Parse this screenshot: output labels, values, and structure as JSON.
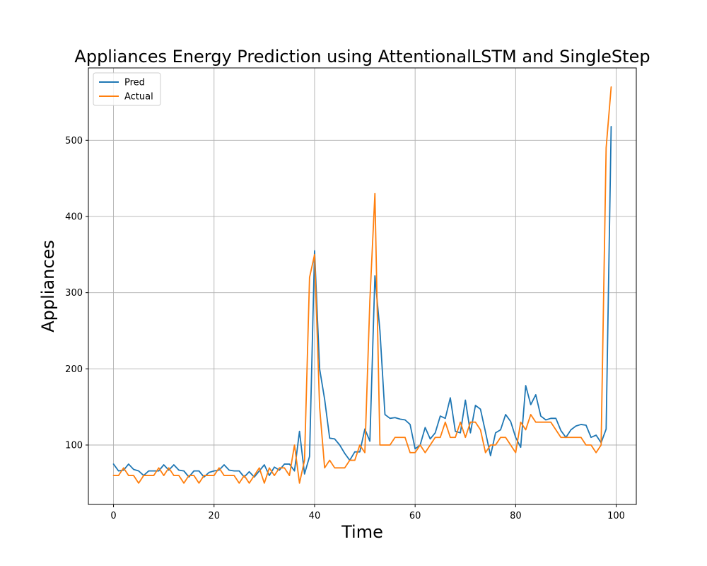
{
  "chart_data": {
    "type": "line",
    "title": "Appliances Energy Prediction using AttentionalLSTM and SingleStep",
    "xlabel": "Time",
    "ylabel": "Appliances",
    "xlim": [
      -5,
      104
    ],
    "ylim": [
      22,
      595
    ],
    "xticks": [
      0,
      20,
      40,
      60,
      80,
      100
    ],
    "yticks": [
      100,
      200,
      300,
      400,
      500
    ],
    "grid": true,
    "legend_position": "top-left",
    "series": [
      {
        "name": "Pred",
        "color": "#1f77b4",
        "values": [
          75,
          66,
          67,
          75,
          68,
          66,
          60,
          66,
          66,
          66,
          74,
          67,
          74,
          67,
          66,
          58,
          66,
          66,
          58,
          64,
          66,
          67,
          74,
          67,
          66,
          66,
          58,
          65,
          58,
          66,
          74,
          60,
          71,
          67,
          75,
          75,
          66,
          118,
          62,
          85,
          355,
          200,
          160,
          109,
          108,
          100,
          89,
          80,
          91,
          91,
          121,
          105,
          322,
          250,
          140,
          135,
          136,
          134,
          133,
          127,
          95,
          100,
          123,
          108,
          116,
          138,
          135,
          162,
          118,
          116,
          159,
          116,
          152,
          147,
          117,
          86,
          116,
          120,
          140,
          131,
          110,
          97,
          178,
          153,
          166,
          138,
          133,
          135,
          135,
          119,
          110,
          120,
          125,
          127,
          126,
          110,
          113,
          103,
          121,
          518
        ]
      },
      {
        "name": "Actual",
        "color": "#ff7f0e",
        "values": [
          60,
          60,
          70,
          60,
          60,
          50,
          60,
          60,
          60,
          70,
          60,
          70,
          60,
          60,
          50,
          60,
          60,
          50,
          60,
          60,
          60,
          70,
          60,
          60,
          60,
          50,
          60,
          50,
          60,
          70,
          50,
          70,
          60,
          70,
          70,
          60,
          100,
          50,
          80,
          320,
          350,
          150,
          70,
          80,
          70,
          70,
          70,
          80,
          80,
          100,
          90,
          290,
          430,
          100,
          100,
          100,
          110,
          110,
          110,
          90,
          90,
          100,
          90,
          100,
          110,
          110,
          130,
          110,
          110,
          130,
          110,
          130,
          130,
          120,
          90,
          100,
          100,
          110,
          110,
          100,
          90,
          130,
          120,
          140,
          130,
          130,
          130,
          130,
          120,
          110,
          110,
          110,
          110,
          110,
          100,
          100,
          90,
          100,
          490,
          570
        ]
      }
    ]
  }
}
